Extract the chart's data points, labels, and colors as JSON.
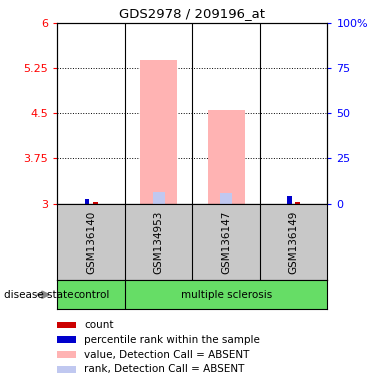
{
  "title": "GDS2978 / 209196_at",
  "samples": [
    "GSM136140",
    "GSM134953",
    "GSM136147",
    "GSM136149"
  ],
  "ylim_left": [
    3,
    6
  ],
  "ylim_right": [
    0,
    100
  ],
  "yticks_left": [
    3,
    3.75,
    4.5,
    5.25,
    6
  ],
  "yticks_right": [
    0,
    25,
    50,
    75,
    100
  ],
  "ytick_labels_right": [
    "0",
    "25",
    "50",
    "75",
    "100%"
  ],
  "bar_data": {
    "value_absent": [
      null,
      5.38,
      4.56,
      null
    ],
    "rank_absent": [
      null,
      3.19,
      3.17,
      null
    ],
    "count_red": [
      3.02,
      null,
      null,
      3.02
    ],
    "rank_blue": [
      3.08,
      null,
      null,
      3.13
    ]
  },
  "colors": {
    "value_absent": "#ffb3b3",
    "rank_absent": "#c0c8f0",
    "count": "#cc0000",
    "rank": "#0000cc",
    "bg_label_gray": "#c8c8c8",
    "bg_label_green": "#66dd66",
    "border": "#000000"
  },
  "disease_state_label": "disease state",
  "group_control": "control",
  "group_ms": "multiple sclerosis",
  "legend_items": [
    {
      "label": "count",
      "color": "#cc0000"
    },
    {
      "label": "percentile rank within the sample",
      "color": "#0000cc"
    },
    {
      "label": "value, Detection Call = ABSENT",
      "color": "#ffb3b3"
    },
    {
      "label": "rank, Detection Call = ABSENT",
      "color": "#c0c8f0"
    }
  ]
}
